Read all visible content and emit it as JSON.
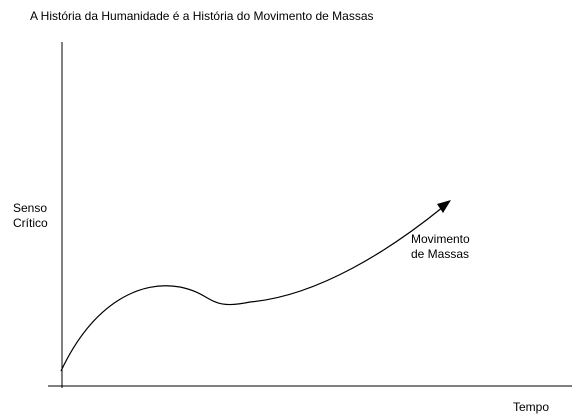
{
  "diagram": {
    "title": "A História da Humanidade é a História do Movimento de Massas",
    "y_axis_label_lines": [
      "Senso",
      "Crítico"
    ],
    "x_axis_label": "Tempo",
    "curve_label_lines": [
      "Movimento",
      "de Massas"
    ]
  }
}
